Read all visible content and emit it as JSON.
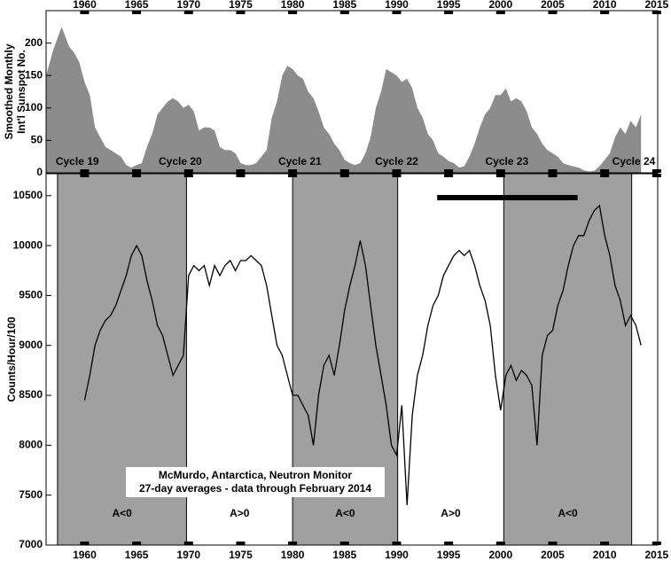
{
  "chart_data": [
    {
      "type": "area",
      "ylabel": [
        "Smoothed Monthly",
        "Int'l Sunspot No."
      ],
      "color": "#8c8c8c",
      "xlim": [
        1956.3,
        2015.1
      ],
      "ylim": [
        0,
        250
      ],
      "xticks": [
        1960,
        1965,
        1970,
        1975,
        1980,
        1985,
        1990,
        1995,
        2000,
        2005,
        2010,
        2015
      ],
      "yticks": [
        0,
        50,
        100,
        150,
        200
      ],
      "cycles": [
        {
          "x": 1959.3,
          "label": "Cycle 19"
        },
        {
          "x": 1969.2,
          "label": "Cycle 20"
        },
        {
          "x": 1980.7,
          "label": "Cycle 21"
        },
        {
          "x": 1990.0,
          "label": "Cycle 22"
        },
        {
          "x": 2000.6,
          "label": "Cycle 23"
        },
        {
          "x": 2012.8,
          "label": "Cycle 24"
        }
      ],
      "x": [
        1956.3,
        1957,
        1957.8,
        1958.5,
        1959,
        1959.5,
        1960,
        1960.5,
        1961,
        1961.5,
        1962,
        1962.5,
        1963,
        1963.5,
        1964,
        1964.5,
        1965,
        1965.5,
        1966,
        1966.5,
        1967,
        1967.5,
        1968,
        1968.5,
        1969,
        1969.5,
        1970,
        1970.5,
        1971,
        1971.5,
        1972,
        1972.5,
        1973,
        1973.5,
        1974,
        1974.5,
        1975,
        1975.5,
        1976,
        1976.5,
        1977,
        1977.5,
        1978,
        1978.5,
        1979,
        1979.5,
        1980,
        1980.5,
        1981,
        1981.5,
        1982,
        1982.5,
        1983,
        1983.5,
        1984,
        1984.5,
        1985,
        1985.5,
        1986,
        1986.5,
        1987,
        1987.5,
        1988,
        1988.5,
        1989,
        1989.5,
        1990,
        1990.5,
        1991,
        1991.5,
        1992,
        1992.5,
        1993,
        1993.5,
        1994,
        1994.5,
        1995,
        1995.5,
        1996,
        1996.5,
        1997,
        1997.5,
        1998,
        1998.5,
        1999,
        1999.5,
        2000,
        2000.5,
        2001,
        2001.5,
        2002,
        2002.5,
        2003,
        2003.5,
        2004,
        2004.5,
        2005,
        2005.5,
        2006,
        2006.5,
        2007,
        2007.5,
        2008,
        2008.5,
        2009,
        2009.5,
        2010,
        2010.5,
        2011,
        2011.5,
        2012,
        2012.5,
        2013,
        2013.5
      ],
      "values": [
        150,
        190,
        225,
        195,
        185,
        170,
        140,
        120,
        70,
        55,
        40,
        35,
        30,
        25,
        12,
        8,
        12,
        15,
        40,
        60,
        90,
        100,
        110,
        115,
        110,
        100,
        105,
        95,
        65,
        70,
        70,
        65,
        40,
        35,
        35,
        30,
        15,
        12,
        12,
        15,
        25,
        35,
        85,
        110,
        150,
        165,
        160,
        150,
        145,
        125,
        115,
        95,
        70,
        60,
        45,
        35,
        20,
        15,
        12,
        15,
        30,
        55,
        100,
        125,
        160,
        155,
        150,
        140,
        145,
        130,
        100,
        85,
        60,
        50,
        30,
        25,
        18,
        15,
        8,
        10,
        25,
        45,
        70,
        90,
        100,
        120,
        120,
        130,
        110,
        115,
        110,
        95,
        70,
        60,
        45,
        35,
        30,
        25,
        15,
        12,
        10,
        8,
        4,
        2,
        3,
        10,
        20,
        30,
        55,
        70,
        60,
        80,
        70,
        90
      ]
    },
    {
      "type": "line",
      "ylabel": "Counts/Hour/100",
      "color": "#000000",
      "shade": "#a0a0a0",
      "xlim": [
        1956.3,
        2015.1
      ],
      "ylim": [
        7000,
        10720
      ],
      "xticks": [
        1960,
        1965,
        1970,
        1975,
        1980,
        1985,
        1990,
        1995,
        2000,
        2005,
        2010,
        2015
      ],
      "yticks": [
        7000,
        7500,
        8000,
        8500,
        9000,
        9500,
        10000,
        10500
      ],
      "periods": [
        {
          "start": 1957.4,
          "end": 1969.8,
          "label": "A<0",
          "shaded": true
        },
        {
          "start": 1969.8,
          "end": 1980.0,
          "label": "A>0",
          "shaded": false
        },
        {
          "start": 1980.0,
          "end": 1990.1,
          "label": "A<0",
          "shaded": true
        },
        {
          "start": 1990.1,
          "end": 2000.3,
          "label": "A>0",
          "shaded": false
        },
        {
          "start": 2000.3,
          "end": 2012.6,
          "label": "A<0",
          "shaded": true
        }
      ],
      "bar": {
        "x": [
          1993.9,
          2007.4
        ],
        "y": 10480
      },
      "annotation": [
        "McMurdo, Antarctica, Neutron Monitor",
        "27-day averages - data through February 2014"
      ],
      "x": [
        1960,
        1960.5,
        1961,
        1961.5,
        1962,
        1962.5,
        1963,
        1963.5,
        1964,
        1964.5,
        1965,
        1965.5,
        1966,
        1966.5,
        1967,
        1967.5,
        1968,
        1968.5,
        1969,
        1969.5,
        1970,
        1970.5,
        1971,
        1971.5,
        1972,
        1972.5,
        1973,
        1973.5,
        1974,
        1974.5,
        1975,
        1975.5,
        1976,
        1976.5,
        1977,
        1977.5,
        1978,
        1978.5,
        1979,
        1979.5,
        1980,
        1980.5,
        1981,
        1981.5,
        1982,
        1982.5,
        1983,
        1983.5,
        1984,
        1984.5,
        1985,
        1985.5,
        1986,
        1986.5,
        1987,
        1987.5,
        1988,
        1988.5,
        1989,
        1989.5,
        1990,
        1990.5,
        1991,
        1991.5,
        1992,
        1992.5,
        1993,
        1993.5,
        1994,
        1994.5,
        1995,
        1995.5,
        1996,
        1996.5,
        1997,
        1997.5,
        1998,
        1998.5,
        1999,
        1999.5,
        2000,
        2000.5,
        2001,
        2001.5,
        2002,
        2002.5,
        2003,
        2003.5,
        2004,
        2004.5,
        2005,
        2005.5,
        2006,
        2006.5,
        2007,
        2007.5,
        2008,
        2008.5,
        2009,
        2009.5,
        2010,
        2010.5,
        2011,
        2011.5,
        2012,
        2012.5,
        2013,
        2013.5
      ],
      "values": [
        8450,
        8700,
        9000,
        9150,
        9250,
        9300,
        9400,
        9550,
        9700,
        9900,
        10000,
        9900,
        9650,
        9450,
        9200,
        9100,
        8900,
        8700,
        8800,
        8900,
        9700,
        9800,
        9750,
        9800,
        9600,
        9800,
        9700,
        9800,
        9850,
        9750,
        9850,
        9850,
        9900,
        9850,
        9800,
        9600,
        9300,
        9000,
        8900,
        8700,
        8500,
        8500,
        8400,
        8300,
        8000,
        8500,
        8800,
        8900,
        8700,
        9000,
        9350,
        9600,
        9800,
        10050,
        9800,
        9400,
        9000,
        8700,
        8400,
        8000,
        7900,
        8400,
        7400,
        8300,
        8700,
        8900,
        9200,
        9400,
        9500,
        9700,
        9800,
        9900,
        9950,
        9900,
        9950,
        9800,
        9600,
        9450,
        9200,
        8700,
        8350,
        8700,
        8800,
        8650,
        8750,
        8700,
        8600,
        8000,
        8900,
        9100,
        9150,
        9400,
        9550,
        9800,
        10000,
        10100,
        10100,
        10250,
        10350,
        10400,
        10100,
        9900,
        9600,
        9450,
        9200,
        9300,
        9200,
        9000
      ]
    }
  ]
}
